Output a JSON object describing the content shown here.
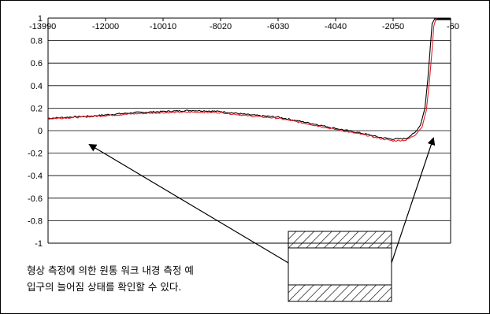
{
  "chart_data": {
    "type": "line",
    "title": "",
    "xlabel": "",
    "ylabel": "",
    "xlim": [
      -13990,
      -60
    ],
    "ylim": [
      -1,
      1
    ],
    "x_ticks": [
      -13990,
      -12000,
      -10010,
      -8020,
      -6030,
      -4040,
      -2050,
      -60
    ],
    "x_tick_labels": [
      "-13990",
      "-12000",
      "-10010",
      "-8020",
      "-6030",
      "-4040",
      "-2050",
      "-60"
    ],
    "y_ticks": [
      1,
      0.8,
      0.6,
      0.4,
      0.2,
      0,
      -0.2,
      -0.4,
      -0.6,
      -0.8,
      -1
    ],
    "y_tick_labels": [
      "1",
      "0.8",
      "0.6",
      "0.4",
      "0.2",
      "0",
      "-0.2",
      "-0.4",
      "-0.6",
      "-0.8",
      "-1"
    ],
    "grid": "horizontal",
    "series": [
      {
        "color": "#000000",
        "x": [
          -13990,
          -12500,
          -11000,
          -10010,
          -9000,
          -8020,
          -7000,
          -6030,
          -5000,
          -4040,
          -3000,
          -2500,
          -2050,
          -1600,
          -1300,
          -1100,
          -950,
          -850,
          -760,
          -700,
          -600
        ],
        "y": [
          0.11,
          0.13,
          0.16,
          0.17,
          0.18,
          0.17,
          0.14,
          0.12,
          0.07,
          0.02,
          -0.03,
          -0.06,
          -0.075,
          -0.07,
          -0.02,
          0.05,
          0.2,
          0.45,
          0.75,
          0.95,
          1.0
        ]
      },
      {
        "color": "#e0202a",
        "x": [
          -13990,
          -12500,
          -11000,
          -10010,
          -9000,
          -8020,
          -7000,
          -6030,
          -5000,
          -4040,
          -3000,
          -2500,
          -2050,
          -1600,
          -1300,
          -1050,
          -900,
          -800,
          -700,
          -640,
          -560
        ],
        "y": [
          0.105,
          0.125,
          0.15,
          0.16,
          0.165,
          0.16,
          0.13,
          0.11,
          0.06,
          0.01,
          -0.04,
          -0.07,
          -0.09,
          -0.085,
          -0.04,
          0.03,
          0.18,
          0.42,
          0.72,
          0.93,
          1.0
        ]
      }
    ],
    "annotations": [
      {
        "text_lines": [
          "형상 측정에 의한 원통 워크 내경 측정 예",
          "입구의 늘어짐 상태를 확인할 수 있다."
        ]
      }
    ]
  }
}
